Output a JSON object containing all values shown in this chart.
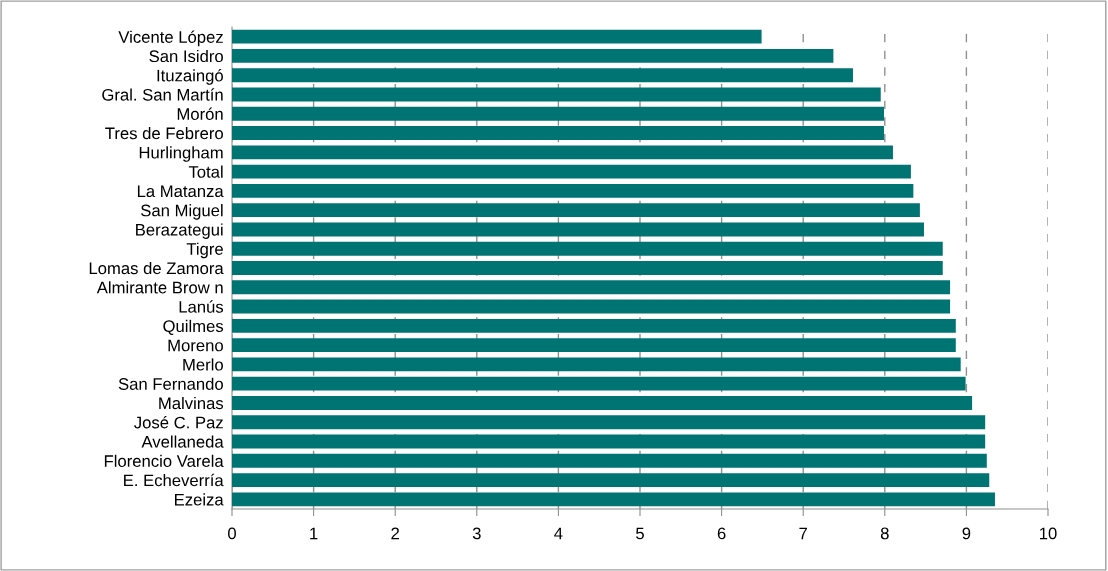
{
  "chart_data": {
    "type": "bar",
    "orientation": "horizontal",
    "categories": [
      "Vicente López",
      "San Isidro",
      "Ituzaingó",
      "Gral. San Martín",
      "Morón",
      "Tres de Febrero",
      "Hurlingham",
      "Total",
      "La Matanza",
      "San Miguel",
      "Berazategui",
      "Tigre",
      "Lomas de Zamora",
      "Almirante Brow n",
      "Lanús",
      "Quilmes",
      "Moreno",
      "Merlo",
      "San Fernando",
      "Malvinas",
      "José C. Paz",
      "Avellaneda",
      "Florencio Varela",
      "E. Echeverría",
      "Ezeiza"
    ],
    "values": [
      6.49,
      7.37,
      7.61,
      7.95,
      7.99,
      7.99,
      8.1,
      8.32,
      8.35,
      8.43,
      8.48,
      8.71,
      8.71,
      8.8,
      8.8,
      8.87,
      8.87,
      8.93,
      8.99,
      9.07,
      9.23,
      9.23,
      9.25,
      9.28,
      9.35
    ],
    "color": "#007373",
    "xlim": [
      0,
      10
    ],
    "xticks": [
      0,
      1,
      2,
      3,
      4,
      5,
      6,
      7,
      8,
      9,
      10
    ],
    "grid": "x"
  }
}
